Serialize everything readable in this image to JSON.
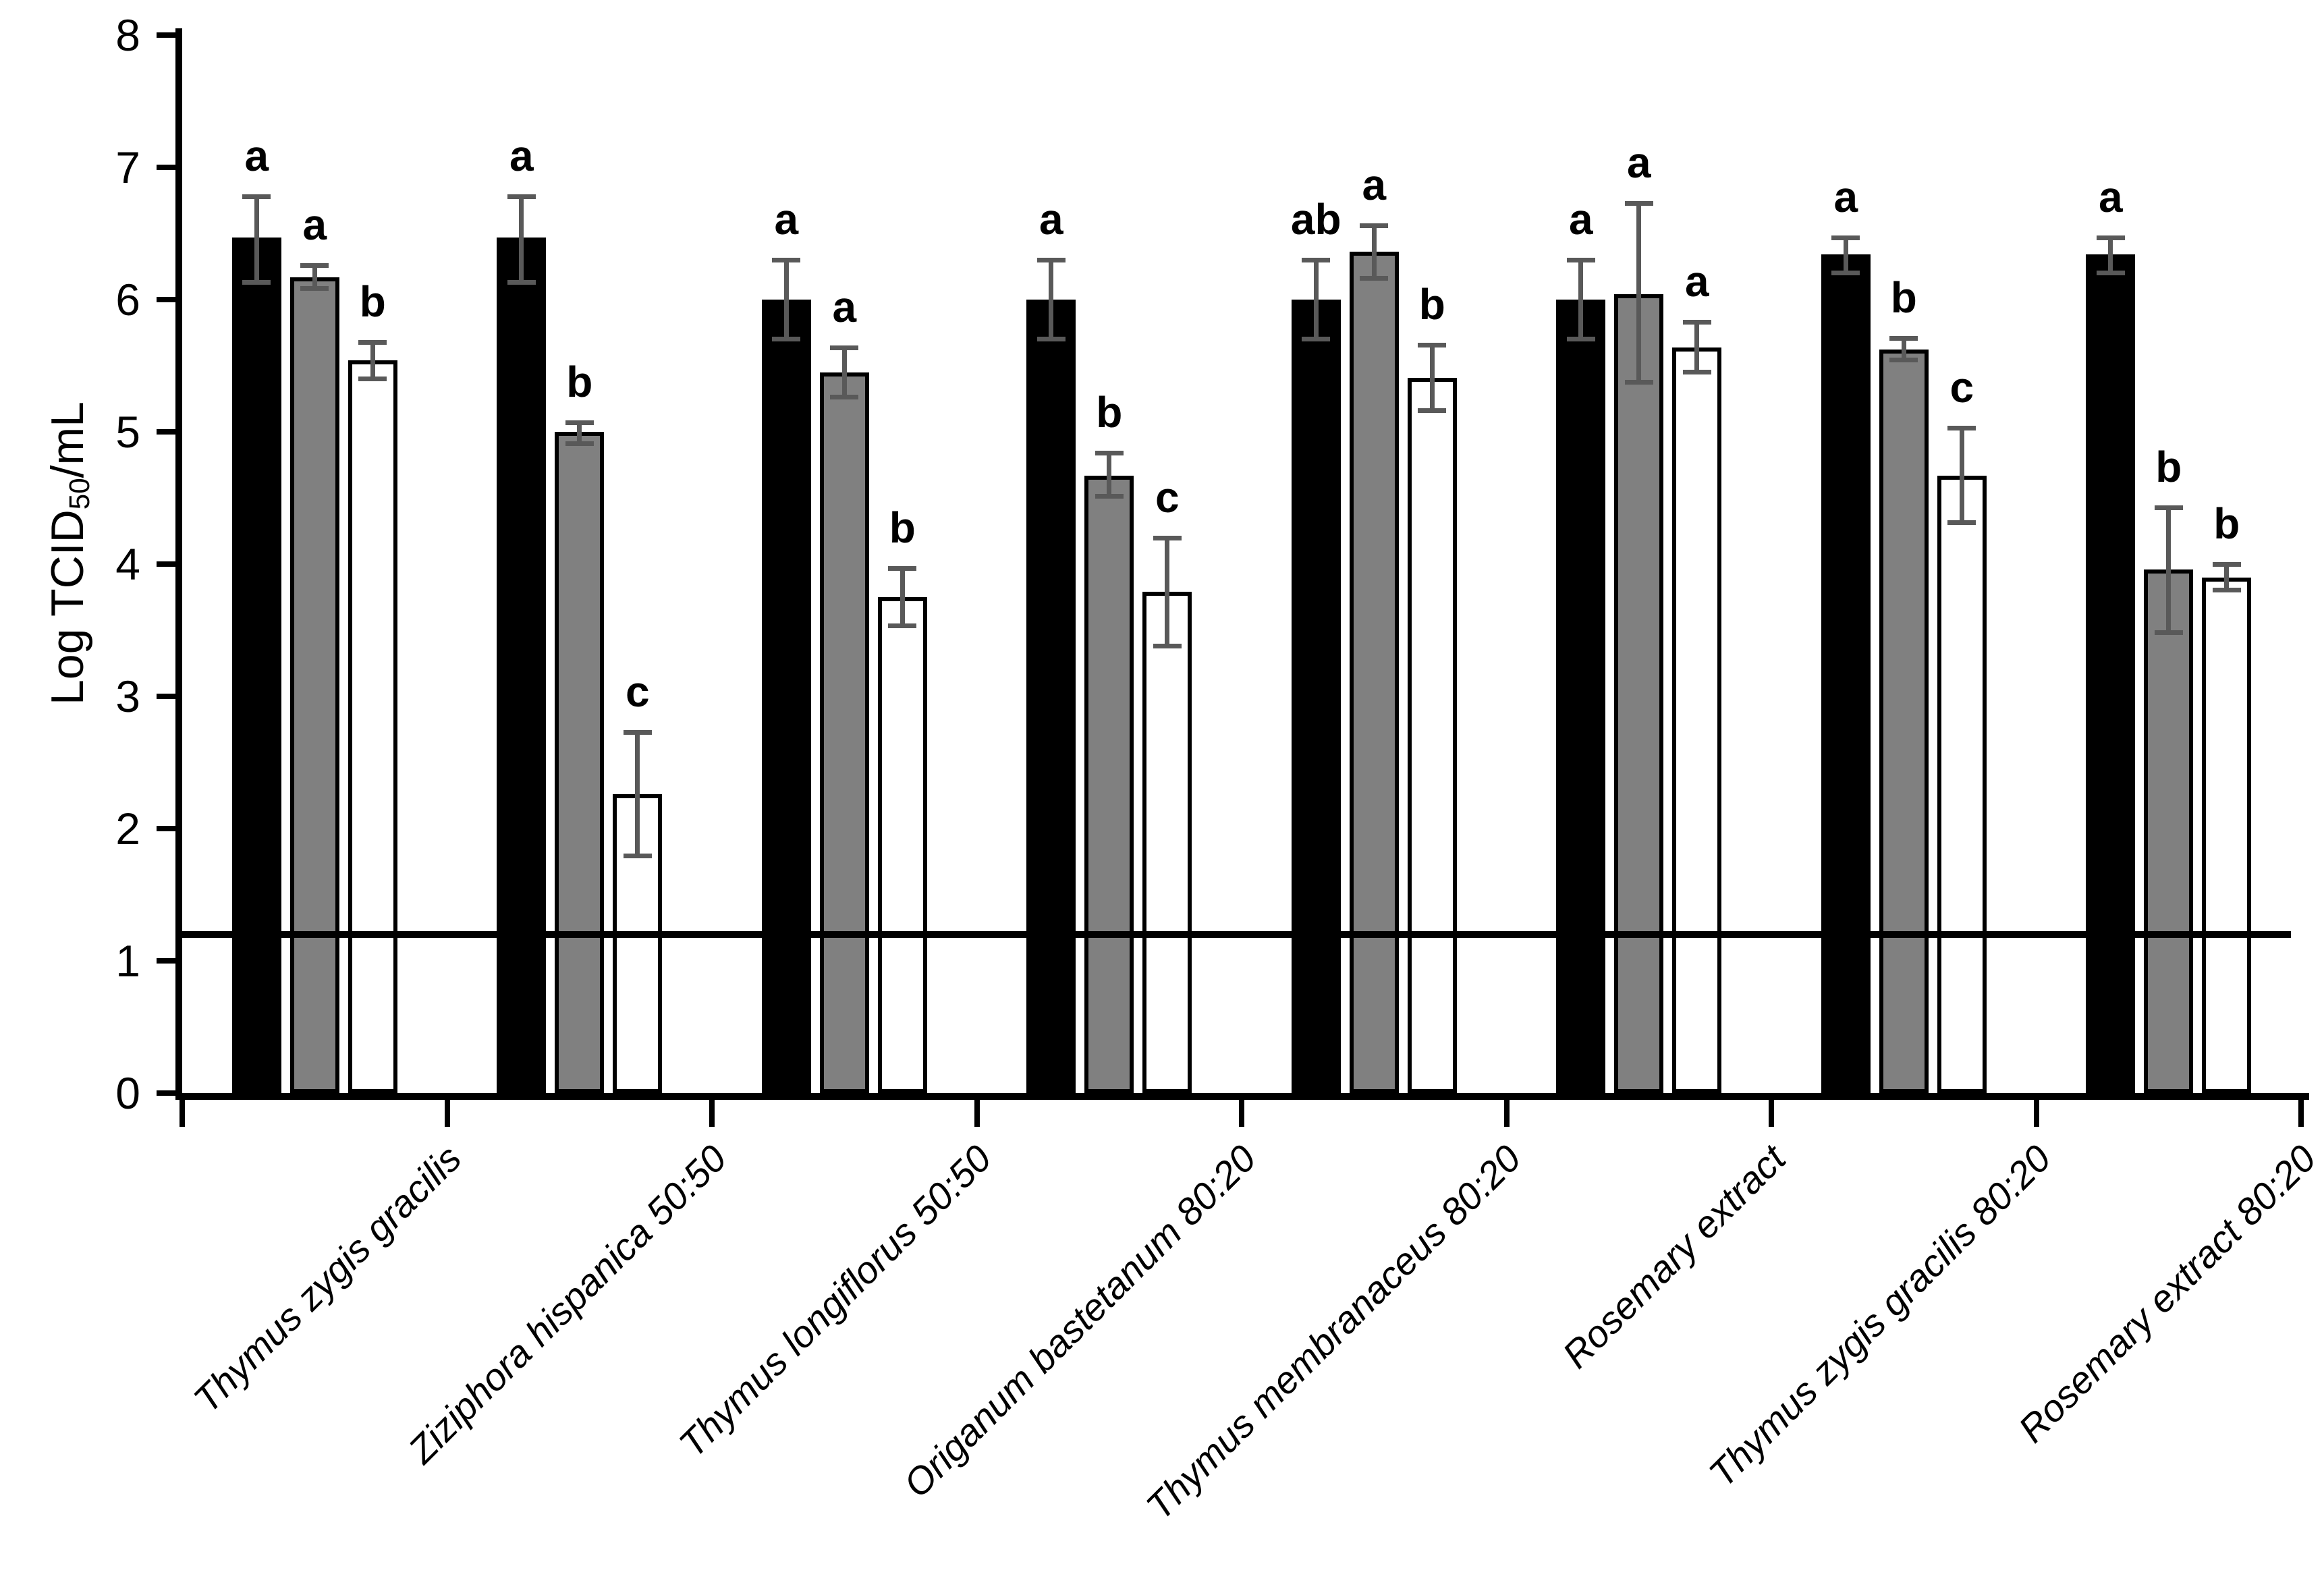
{
  "chart_data": {
    "type": "bar",
    "title": "",
    "xlabel": "",
    "ylabel": "Log TCID50/mL",
    "ylabel_parts": {
      "pre": "Log TCID",
      "sub": "50",
      "post": "/mL"
    },
    "ylim": [
      0,
      8
    ],
    "yticks": [
      0,
      1,
      2,
      3,
      4,
      5,
      6,
      7,
      8
    ],
    "grid": false,
    "legend": "none",
    "reference_line_y": 1.2,
    "error_bar_color": "#595959",
    "categories": [
      "Thymus zygis gracilis",
      "Ziziphora hispanica 50:50",
      "Thymus longiflorus 50:50",
      "Origanum bastetanum 80:20",
      "Thymus membranaceus 80:20",
      "Rosemary extract",
      "Thymus zygis gracilis 80:20",
      "Rosemary extract 80:20"
    ],
    "series": [
      {
        "name": "black",
        "fill": "#000000",
        "values": [
          6.47,
          6.47,
          6.0,
          6.0,
          6.0,
          6.0,
          6.34,
          6.34
        ],
        "error_lower": [
          6.13,
          6.13,
          5.7,
          5.7,
          5.7,
          5.7,
          6.2,
          6.2
        ],
        "error_upper": [
          6.78,
          6.78,
          6.3,
          6.3,
          6.3,
          6.3,
          6.47,
          6.47
        ],
        "letters": [
          "a",
          "a",
          "a",
          "a",
          "ab",
          "a",
          "a",
          "a"
        ]
      },
      {
        "name": "gray",
        "fill": "#808080",
        "values": [
          6.17,
          5.0,
          5.45,
          4.67,
          6.36,
          6.04,
          5.62,
          3.96
        ],
        "error_lower": [
          6.08,
          4.91,
          5.26,
          4.51,
          6.16,
          5.37,
          5.54,
          3.48
        ],
        "error_upper": [
          6.26,
          5.07,
          5.64,
          4.84,
          6.56,
          6.73,
          5.71,
          4.43
        ],
        "letters": [
          "a",
          "b",
          "a",
          "b",
          "a",
          "a",
          "b",
          "b"
        ]
      },
      {
        "name": "white",
        "fill": "#ffffff",
        "values": [
          5.54,
          2.26,
          3.75,
          3.79,
          5.41,
          5.64,
          4.67,
          3.9
        ],
        "error_lower": [
          5.4,
          1.79,
          3.53,
          3.38,
          5.16,
          5.45,
          4.31,
          3.8
        ],
        "error_upper": [
          5.68,
          2.73,
          3.97,
          4.2,
          5.66,
          5.83,
          5.03,
          4.0
        ],
        "letters": [
          "b",
          "c",
          "b",
          "c",
          "b",
          "a",
          "c",
          "b"
        ]
      }
    ]
  }
}
